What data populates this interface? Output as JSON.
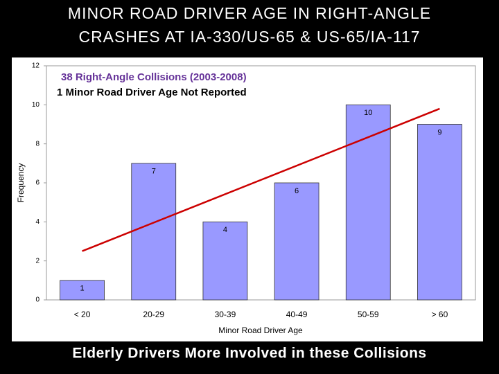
{
  "chart_data": {
    "type": "bar",
    "title": [
      "MINOR ROAD DRIVER AGE IN RIGHT-ANGLE",
      "CRASHES AT IA-330/US-65 & US-65/IA-117"
    ],
    "annotations": [
      "38 Right-Angle Collisions (2003-2008)",
      "1 Minor Road Driver Age Not Reported"
    ],
    "footer": "Elderly Drivers More Involved in these Collisions",
    "x_label": "Minor Road Driver Age",
    "y_label": "Frequency",
    "categories": [
      "< 20",
      "20-29",
      "30-39",
      "40-49",
      "50-59",
      "> 60"
    ],
    "values": [
      1,
      7,
      4,
      6,
      10,
      9
    ],
    "color": "#9999ff",
    "trendline": {
      "start": 2.5,
      "end": 9.8,
      "color": "#cc0000"
    },
    "ylim": [
      0,
      12
    ],
    "yticks": [
      0,
      2,
      4,
      6,
      8,
      10,
      12
    ],
    "grid": false
  }
}
